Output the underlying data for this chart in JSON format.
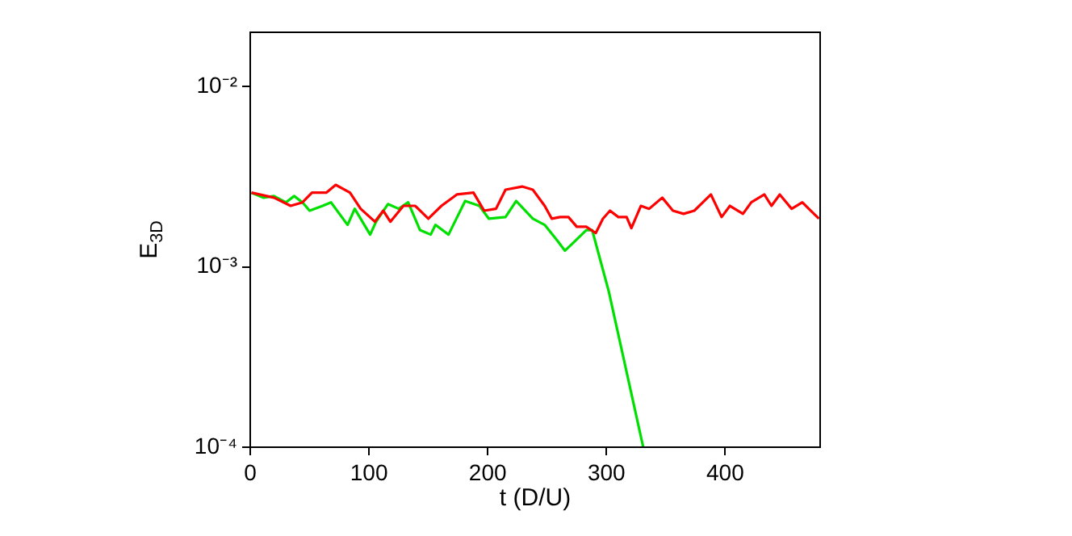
{
  "chart_data": {
    "type": "line",
    "xlabel": "t (D/U)",
    "ylabel": "E$_{3D}$",
    "log": "y",
    "grid": false,
    "legend": false,
    "marker": "none",
    "line_style": "solid",
    "xlim": [
      0,
      480
    ],
    "xticks": [
      0,
      100,
      200,
      300,
      400
    ],
    "ylim": [
      0.0001,
      0.02
    ],
    "yticks": [
      {
        "value": 0.0001,
        "label": "10⁻⁴"
      },
      {
        "value": 0.001,
        "label": "10⁻³"
      },
      {
        "value": 0.01,
        "label": "10⁻²"
      }
    ],
    "series": [
      {
        "color": "#ff0000",
        "x": [
          1,
          20,
          34,
          44,
          52,
          64,
          72,
          84,
          93,
          105,
          112,
          118,
          129,
          139,
          150,
          161,
          174,
          188,
          197,
          207,
          215,
          229,
          238,
          248,
          254,
          261,
          268,
          275,
          283,
          291,
          297,
          303,
          310,
          317,
          321,
          329,
          336,
          347,
          356,
          365,
          374,
          388,
          397,
          404,
          415,
          422,
          433,
          439,
          446,
          456,
          465,
          472,
          479
        ],
        "values": [
          0.00258,
          0.00242,
          0.00218,
          0.00228,
          0.00258,
          0.00258,
          0.00285,
          0.00258,
          0.0021,
          0.00178,
          0.00205,
          0.00178,
          0.00218,
          0.00218,
          0.00185,
          0.00218,
          0.00252,
          0.00258,
          0.00205,
          0.0021,
          0.00268,
          0.00279,
          0.00268,
          0.00218,
          0.00185,
          0.00189,
          0.00189,
          0.00167,
          0.00167,
          0.00154,
          0.00185,
          0.00205,
          0.00189,
          0.00189,
          0.00164,
          0.00218,
          0.0021,
          0.00242,
          0.00205,
          0.00197,
          0.00205,
          0.00252,
          0.00189,
          0.00218,
          0.00197,
          0.00228,
          0.00252,
          0.00218,
          0.00252,
          0.0021,
          0.00228,
          0.00205,
          0.00185
        ]
      },
      {
        "color": "#00e000",
        "x": [
          1,
          11,
          20,
          30,
          37,
          44,
          50,
          61,
          68,
          82,
          88,
          101,
          106,
          116,
          125,
          133,
          143,
          152,
          156,
          167,
          181,
          193,
          201,
          215,
          224,
          238,
          248,
          259,
          265,
          272,
          283,
          288,
          302,
          331
        ],
        "values": [
          0.00258,
          0.00242,
          0.00247,
          0.00228,
          0.00247,
          0.00228,
          0.00205,
          0.00218,
          0.00228,
          0.00171,
          0.0021,
          0.00151,
          0.00178,
          0.00223,
          0.0021,
          0.00228,
          0.0016,
          0.00151,
          0.00171,
          0.00151,
          0.00232,
          0.00218,
          0.00185,
          0.00189,
          0.00232,
          0.00185,
          0.00171,
          0.00139,
          0.00123,
          0.00136,
          0.0016,
          0.0016,
          0.00073,
          0.0001
        ]
      }
    ]
  }
}
